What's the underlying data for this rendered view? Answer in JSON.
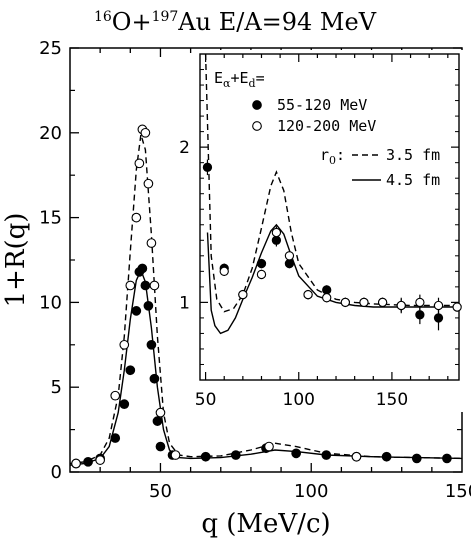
{
  "figure": {
    "title_sup_a": "16",
    "title_a": "O+",
    "title_sup_b": "197",
    "title_b": "Au E/A=94 MeV"
  },
  "chart_data": [
    {
      "type": "scatter",
      "xlabel": "q (MeV/c)",
      "ylabel": "1+R(q)",
      "xlim": [
        20,
        150
      ],
      "ylim": [
        0,
        25
      ],
      "xticks": [
        50,
        100,
        150
      ],
      "yticks": [
        0,
        5,
        10,
        15,
        20,
        25
      ],
      "xtick_labels": [
        "50",
        "100",
        "150"
      ],
      "ytick_labels": [
        "0",
        "5",
        "10",
        "15",
        "20",
        "25"
      ],
      "series": [
        {
          "name": "55-120 MeV",
          "marker": "filled-circle",
          "x": [
            22,
            26,
            30,
            35,
            38,
            40,
            42,
            43,
            44,
            45,
            46,
            47,
            48,
            49,
            50,
            54,
            65,
            75,
            85,
            95,
            105,
            115,
            125,
            135,
            145
          ],
          "y": [
            0.5,
            0.6,
            0.8,
            2.0,
            4.0,
            6.0,
            9.5,
            11.8,
            12.0,
            11.0,
            9.8,
            7.5,
            5.5,
            3.0,
            1.5,
            1.0,
            0.9,
            1.0,
            1.4,
            1.1,
            1.0,
            0.9,
            0.9,
            0.8,
            0.8
          ]
        },
        {
          "name": "120-200 MeV",
          "marker": "open-circle",
          "x": [
            22,
            30,
            35,
            38,
            40,
            42,
            43,
            44,
            45,
            46,
            47,
            48,
            50,
            55,
            86,
            115
          ],
          "y": [
            0.5,
            0.7,
            4.5,
            7.5,
            11.0,
            15.0,
            18.2,
            20.2,
            20.0,
            17.0,
            13.5,
            11.0,
            3.5,
            1.0,
            1.5,
            0.9
          ]
        },
        {
          "name": "r0 = 3.5 fm",
          "style": "dashed-line",
          "x": [
            20,
            25,
            30,
            33,
            36,
            38,
            40,
            42,
            43.5,
            45,
            47,
            49,
            51,
            53,
            56,
            60,
            70,
            80,
            88,
            95,
            105,
            120,
            135,
            150
          ],
          "y": [
            0.5,
            0.6,
            1.0,
            2.0,
            4.5,
            8.0,
            13.0,
            17.8,
            19.9,
            19.0,
            14.0,
            8.0,
            3.5,
            1.7,
            1.0,
            0.9,
            0.95,
            1.3,
            1.7,
            1.5,
            1.1,
            0.9,
            0.85,
            0.8
          ]
        },
        {
          "name": "r0 = 4.5 fm",
          "style": "solid-line",
          "x": [
            20,
            25,
            30,
            33,
            36,
            38,
            40,
            42,
            43.5,
            45,
            47,
            49,
            51,
            53,
            56,
            60,
            70,
            80,
            88,
            95,
            105,
            120,
            135,
            150
          ],
          "y": [
            0.4,
            0.5,
            0.8,
            1.5,
            3.5,
            6.0,
            9.0,
            11.3,
            11.9,
            11.2,
            8.5,
            5.0,
            2.5,
            1.3,
            0.85,
            0.8,
            0.85,
            1.05,
            1.3,
            1.2,
            1.0,
            0.9,
            0.85,
            0.8
          ]
        }
      ]
    },
    {
      "type": "scatter",
      "xlim": [
        47,
        186
      ],
      "ylim": [
        0.5,
        2.6
      ],
      "xticks": [
        50,
        100,
        150
      ],
      "yticks": [
        1,
        2
      ],
      "xtick_labels": [
        "50",
        "100",
        "150"
      ],
      "ytick_labels": [
        "1",
        "2"
      ],
      "legend_header": "E",
      "legend_header_sub_a": "α",
      "legend_header_mid": "+E",
      "legend_header_sub_b": "d",
      "legend_header_end": "=",
      "radius_label": "r",
      "radius_label_sub": "0",
      "radius_label_end": ":",
      "series": [
        {
          "name": "55-120 MeV",
          "marker": "filled-circle",
          "x": [
            51,
            60,
            70,
            80,
            88,
            95,
            105,
            115,
            125,
            135,
            145,
            155,
            165,
            175
          ],
          "y": [
            1.87,
            1.22,
            1.05,
            1.25,
            1.4,
            1.25,
            1.05,
            1.08,
            1.0,
            1.0,
            1.0,
            0.98,
            0.92,
            0.9
          ],
          "err": [
            0.05,
            0.03,
            0.03,
            0.03,
            0.04,
            0.03,
            0.03,
            0.03,
            0.03,
            0.03,
            0.03,
            0.05,
            0.06,
            0.08
          ]
        },
        {
          "name": "120-200 MeV",
          "marker": "open-circle",
          "x": [
            60,
            70,
            80,
            88,
            95,
            105,
            115,
            125,
            135,
            145,
            155,
            165,
            175,
            185
          ],
          "y": [
            1.2,
            1.05,
            1.18,
            1.45,
            1.3,
            1.05,
            1.03,
            1.0,
            1.0,
            1.0,
            0.98,
            1.0,
            0.98,
            0.97
          ],
          "err": [
            0.03,
            0.03,
            0.03,
            0.04,
            0.03,
            0.03,
            0.03,
            0.03,
            0.03,
            0.03,
            0.04,
            0.05,
            0.05,
            0.03
          ]
        },
        {
          "name": "3.5 fm",
          "style": "dashed-line",
          "x": [
            50,
            53,
            56,
            60,
            65,
            70,
            75,
            80,
            85,
            88,
            92,
            96,
            100,
            110,
            120,
            130,
            140,
            160,
            186
          ],
          "y": [
            2.6,
            1.3,
            1.02,
            0.94,
            0.96,
            1.05,
            1.22,
            1.48,
            1.75,
            1.84,
            1.72,
            1.45,
            1.25,
            1.08,
            1.02,
            1.0,
            0.99,
            0.98,
            0.98
          ]
        },
        {
          "name": "4.5 fm",
          "style": "solid-line",
          "x": [
            51,
            53,
            55,
            58,
            62,
            66,
            70,
            75,
            80,
            85,
            88,
            92,
            96,
            100,
            110,
            120,
            130,
            140,
            160,
            186
          ],
          "y": [
            1.45,
            0.95,
            0.85,
            0.8,
            0.82,
            0.9,
            1.02,
            1.16,
            1.32,
            1.46,
            1.5,
            1.44,
            1.3,
            1.17,
            1.04,
            1.0,
            0.98,
            0.97,
            0.97,
            0.97
          ]
        }
      ]
    }
  ]
}
